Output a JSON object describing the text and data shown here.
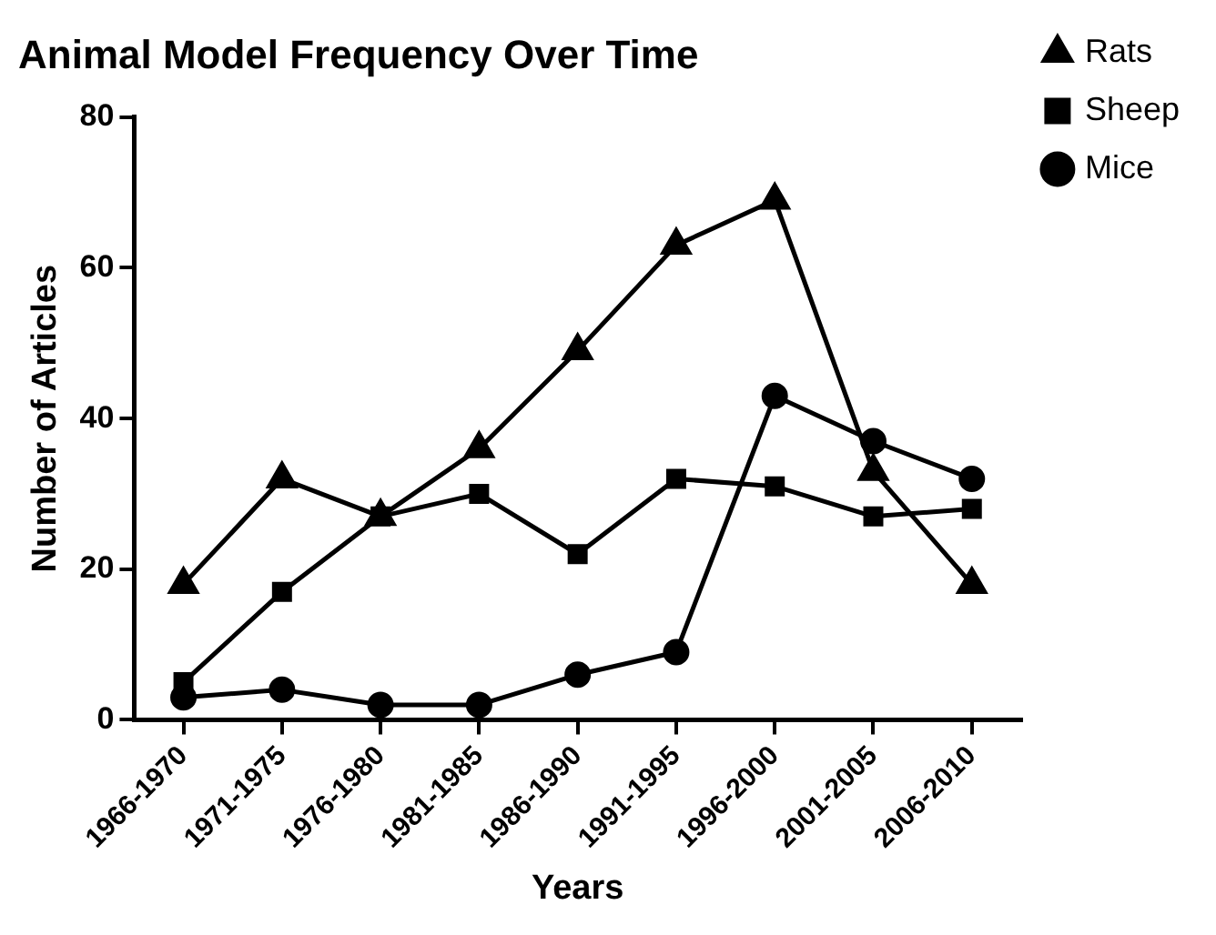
{
  "chart_data": {
    "type": "line",
    "title": "Animal Model Frequency Over Time",
    "xlabel": "Years",
    "ylabel": "Number of Articles",
    "categories": [
      "1966-1970",
      "1971-1975",
      "1976-1980",
      "1981-1985",
      "1986-1990",
      "1991-1995",
      "1996-2000",
      "2001-2005",
      "2006-2010"
    ],
    "series": [
      {
        "name": "Rats",
        "color": "#000000",
        "marker": "triangle",
        "values": [
          18,
          32,
          27,
          36,
          49,
          63,
          69,
          33,
          18
        ]
      },
      {
        "name": "Sheep",
        "color": "#000000",
        "marker": "square",
        "values": [
          5,
          17,
          27,
          30,
          22,
          32,
          31,
          27,
          28
        ]
      },
      {
        "name": "Mice",
        "color": "#000000",
        "marker": "circle",
        "values": [
          3,
          4,
          2,
          2,
          6,
          9,
          43,
          37,
          32
        ]
      }
    ],
    "ylim": [
      0,
      80
    ],
    "yticks": [
      0,
      20,
      40,
      60,
      80
    ],
    "grid": false,
    "legend": "top right",
    "line_style": "solid"
  }
}
